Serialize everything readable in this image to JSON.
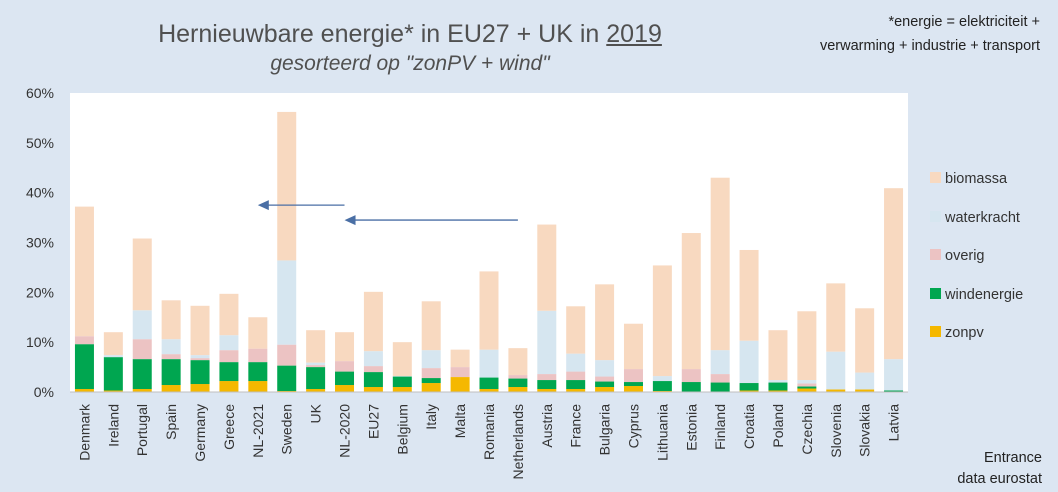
{
  "title_main": "Hernieuwbare energie* in EU27 + UK in ",
  "title_year": "2019",
  "subtitle": "gesorteerd op \"zonPV + wind\"",
  "note_line1": "*energie = elektriciteit +",
  "note_line2": "verwarming + industrie + transport",
  "source_line1": "Entrance",
  "source_line2": "data eurostat",
  "colors": {
    "zonpv": "#f5b800",
    "windenergie": "#00a650",
    "overig": "#ecc3c3",
    "waterkracht": "#d6e6f0",
    "biomassa": "#f8d9c0",
    "arrow": "#4a6fa5"
  },
  "chart_data": {
    "type": "bar",
    "stacked": true,
    "ylim": [
      0,
      60
    ],
    "yticks": [
      0,
      10,
      20,
      30,
      40,
      50,
      60
    ],
    "ytick_labels": [
      "0%",
      "10%",
      "20%",
      "30%",
      "40%",
      "50%",
      "60%"
    ],
    "legend_position": "right",
    "categories": [
      "Denmark",
      "Ireland",
      "Portugal",
      "Spain",
      "Germany",
      "Greece",
      "NL-2021",
      "Sweden",
      "UK",
      "NL-2020",
      "EU27",
      "Belgium",
      "Italy",
      "Malta",
      "Romania",
      "Netherlands",
      "Austria",
      "France",
      "Bulgaria",
      "Cyprus",
      "Lithuania",
      "Estonia",
      "Finland",
      "Croatia",
      "Poland",
      "Czechia",
      "Slovenia",
      "Slovakia",
      "Latvia"
    ],
    "series": [
      {
        "name": "zonpv",
        "color_key": "zonpv",
        "values": [
          0.6,
          0.3,
          0.6,
          1.4,
          1.6,
          2.2,
          2.2,
          0.2,
          0.6,
          1.4,
          1.0,
          1.0,
          1.8,
          3.0,
          0.6,
          1.0,
          0.6,
          0.6,
          1.0,
          1.2,
          0.2,
          0.1,
          0.0,
          0.3,
          0.3,
          0.7,
          0.5,
          0.5,
          0.0
        ]
      },
      {
        "name": "windenergie",
        "color_key": "windenergie",
        "values": [
          9.0,
          6.7,
          6.0,
          5.2,
          4.8,
          3.8,
          3.8,
          5.1,
          4.4,
          2.7,
          3.0,
          2.1,
          1.0,
          0.0,
          2.3,
          1.7,
          1.8,
          1.8,
          1.1,
          0.8,
          2.0,
          1.9,
          1.9,
          1.5,
          1.6,
          0.4,
          0.0,
          0.0,
          0.3
        ]
      },
      {
        "name": "overig",
        "color_key": "overig",
        "values": [
          1.6,
          0.0,
          4.0,
          1.0,
          0.4,
          2.4,
          2.7,
          4.2,
          0.4,
          2.1,
          1.2,
          0.0,
          2.0,
          2.0,
          0.0,
          0.7,
          1.2,
          1.7,
          1.0,
          2.6,
          0.0,
          2.6,
          1.7,
          0.0,
          0.0,
          0.6,
          0.0,
          0.0,
          0.0
        ]
      },
      {
        "name": "waterkracht",
        "color_key": "waterkracht",
        "values": [
          0.0,
          0.4,
          5.8,
          3.0,
          0.6,
          3.0,
          0.0,
          16.9,
          0.5,
          0.0,
          3.0,
          0.1,
          3.6,
          0.0,
          5.6,
          0.0,
          12.7,
          3.6,
          3.3,
          0.0,
          1.0,
          0.0,
          4.8,
          8.5,
          0.5,
          0.7,
          7.6,
          3.4,
          6.3
        ]
      },
      {
        "name": "biomassa",
        "color_key": "biomassa",
        "values": [
          26.0,
          4.6,
          14.4,
          7.8,
          9.9,
          8.3,
          6.3,
          29.8,
          6.5,
          5.8,
          11.9,
          6.8,
          9.8,
          3.5,
          15.7,
          5.4,
          17.3,
          9.5,
          15.2,
          9.1,
          22.2,
          27.3,
          34.6,
          18.2,
          10.0,
          13.8,
          13.7,
          12.9,
          34.3
        ]
      }
    ],
    "legend_order": [
      "biomassa",
      "waterkracht",
      "overig",
      "windenergie",
      "zonpv"
    ],
    "annotations": [
      {
        "type": "arrow",
        "from": {
          "category": "NL-2020",
          "y": 37.5
        },
        "to": {
          "category": "NL-2021",
          "y": 37.5
        },
        "color_key": "arrow"
      },
      {
        "type": "arrow",
        "from": {
          "category": "Netherlands",
          "y": 34.5
        },
        "to": {
          "category": "NL-2020",
          "y": 34.5
        },
        "color_key": "arrow"
      }
    ]
  }
}
